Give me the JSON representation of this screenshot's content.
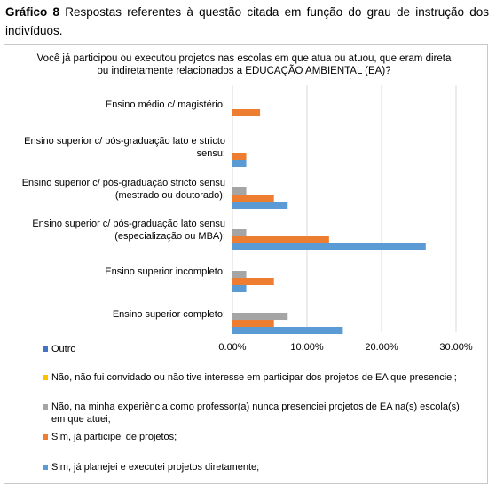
{
  "caption": {
    "label": "Gráfico 8",
    "text": " Respostas referentes à questão citada em função do grau de instrução dos indivíduos."
  },
  "chart_data": {
    "type": "bar",
    "orientation": "horizontal",
    "title": "Você já participou ou executou projetos nas escolas em que atua ou atuou, que eram direta ou indiretamente relacionados a EDUCAÇÃO AMBIENTAL (EA)?",
    "categories": [
      "Ensino médio c/ magistério;",
      "Ensino superior c/ pós-graduação lato e stricto sensu;",
      "Ensino superior c/ pós-graduação stricto sensu (mestrado ou doutorado);",
      "Ensino superior c/ pós-graduação lato sensu (especialização ou MBA);",
      "Ensino superior incompleto;",
      "Ensino superior completo;"
    ],
    "series": [
      {
        "name": "Não, na minha experiência como professor(a) nunca presenciei projetos de EA na(s) escola(s) em que atuei;",
        "color": "#a5a5a5",
        "values": [
          0,
          0,
          1.85,
          1.85,
          1.85,
          7.41
        ]
      },
      {
        "name": "Sim, já participei de projetos;",
        "color": "#ed7d31",
        "values": [
          3.7,
          1.85,
          5.56,
          12.96,
          5.56,
          5.56
        ]
      },
      {
        "name": "Sim, já planejei e executei projetos diretamente;",
        "color": "#5b9bd5",
        "values": [
          0,
          1.85,
          7.41,
          25.93,
          1.85,
          14.81
        ]
      }
    ],
    "xlim": [
      0,
      30
    ],
    "xticks": [
      "0.00%",
      "10.00%",
      "20.00%",
      "30.00%"
    ],
    "grid": true,
    "legend_position": "bottom",
    "legend": [
      {
        "label": "Outro",
        "color": "#4472c4"
      },
      {
        "label": "Não, não fui convidado ou não tive interesse em participar dos projetos de EA que presenciei;",
        "color": "#ffc000"
      },
      {
        "label": "Não, na minha experiência como professor(a) nunca presenciei projetos de EA na(s) escola(s) em que atuei;",
        "color": "#a5a5a5"
      },
      {
        "label": "Sim, já participei de projetos;",
        "color": "#ed7d31"
      },
      {
        "label": "Sim, já planejei e executei projetos diretamente;",
        "color": "#5b9bd5"
      }
    ]
  }
}
